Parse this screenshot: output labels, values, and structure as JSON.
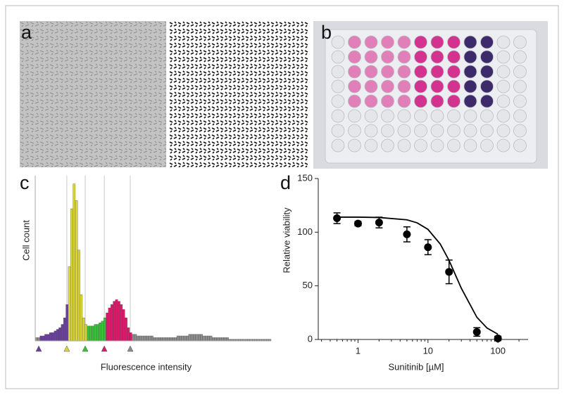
{
  "panel_labels": [
    "a",
    "b",
    "c",
    "d"
  ],
  "chart_data": [
    {
      "type": "histogram",
      "ylabel": "Cell count",
      "xlabel": "Fluorescence intensity",
      "bins": [
        0,
        1,
        2,
        3,
        4,
        5,
        6,
        7,
        8,
        9,
        10,
        11,
        12,
        13,
        14,
        15,
        16,
        17,
        18,
        19,
        20,
        21,
        22,
        23,
        24,
        25,
        26,
        27,
        28,
        29,
        30,
        31,
        32,
        33,
        34,
        35,
        36,
        37,
        38,
        39,
        40,
        41,
        42,
        43,
        44,
        45,
        46,
        47,
        48,
        49,
        50,
        51,
        52,
        53,
        54,
        55,
        56,
        57,
        58,
        59,
        60,
        61,
        62,
        63,
        64,
        65,
        66,
        67,
        68,
        69,
        70,
        71,
        72,
        73,
        74,
        75,
        76,
        77,
        78,
        79,
        80,
        81,
        82,
        83,
        84,
        85,
        86,
        87,
        88,
        89,
        90,
        91,
        92,
        93,
        94,
        95,
        96,
        97,
        98,
        99,
        100
      ],
      "values": [
        2,
        2,
        3,
        3,
        4,
        4,
        5,
        5,
        6,
        7,
        8,
        10,
        14,
        22,
        45,
        80,
        95,
        85,
        55,
        28,
        14,
        10,
        9,
        9,
        9,
        10,
        10,
        11,
        12,
        14,
        17,
        20,
        22,
        24,
        25,
        24,
        22,
        19,
        14,
        8,
        5,
        4,
        4,
        3,
        3,
        3,
        3,
        3,
        3,
        3,
        2,
        2,
        2,
        2,
        2,
        2,
        2,
        2,
        2,
        2,
        3,
        3,
        3,
        3,
        3,
        4,
        4,
        4,
        4,
        4,
        4,
        3,
        3,
        3,
        3,
        2,
        2,
        2,
        2,
        2,
        2,
        2,
        1,
        1,
        1,
        1,
        1,
        1,
        1,
        1,
        1,
        1,
        1,
        1,
        1,
        1,
        1,
        1,
        1,
        1
      ],
      "color": "#8c8c8c",
      "gates": [
        {
          "x": 1.5,
          "color": "#6b3fa0"
        },
        {
          "x": 13.4,
          "color": "#d9d535"
        },
        {
          "x": 21.2,
          "color": "#3dbf3d"
        },
        {
          "x": 29.3,
          "color": "#d81b6a"
        },
        {
          "x": 40.3,
          "color": "#8c8c8c"
        }
      ],
      "xlim": [
        0,
        100
      ],
      "ylim": [
        0,
        100
      ]
    },
    {
      "type": "scatter",
      "xlabel": "Sunitinib [µM]",
      "ylabel": "Relative viability",
      "x": [
        0.5,
        1,
        2,
        5,
        10,
        20,
        50,
        100
      ],
      "values": [
        113,
        108,
        109,
        98,
        86,
        63,
        7,
        1
      ],
      "errors": [
        5,
        2,
        5,
        7,
        7,
        11,
        4,
        2
      ],
      "fit": {
        "x": [
          0.5,
          1,
          2,
          5,
          7,
          10,
          15,
          20,
          30,
          50,
          70,
          100
        ],
        "values": [
          114,
          114,
          113.7,
          111.5,
          108.7,
          102.6,
          88.9,
          73.7,
          47.7,
          20.7,
          10.6,
          4.9
        ]
      },
      "color": "#000000",
      "xlog": true,
      "xlim": [
        0.27,
        270
      ],
      "ylim": [
        0,
        150
      ],
      "xticks": [
        1,
        10,
        100
      ],
      "yticks": [
        0,
        50,
        100,
        150
      ]
    }
  ]
}
